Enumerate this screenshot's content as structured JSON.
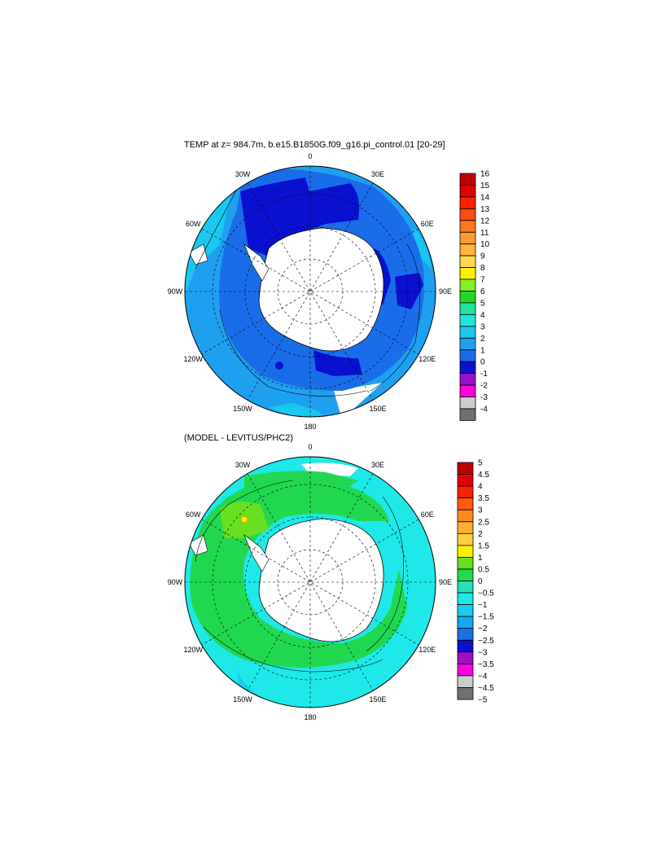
{
  "map1": {
    "title": "TEMP at z= 984.7m, b.e15.B1850G.f09_g16.pi_control.01 [20-29]",
    "longitude_labels": [
      "0",
      "30E",
      "60E",
      "90E",
      "120E",
      "150E",
      "180",
      "150W",
      "120W",
      "90W",
      "60W",
      "30W"
    ],
    "colorbar": {
      "labels": [
        "16",
        "15",
        "14",
        "13",
        "12",
        "11",
        "10",
        "9",
        "8",
        "7",
        "6",
        "5",
        "4",
        "3",
        "2",
        "1",
        "0",
        "-1",
        "-2",
        "-3",
        "-4"
      ],
      "colors": [
        "#c00000",
        "#e00000",
        "#ff2000",
        "#ff4a10",
        "#ff7820",
        "#ff9a30",
        "#ffb63c",
        "#ffd84a",
        "#fff200",
        "#88ee28",
        "#22d822",
        "#22e2a0",
        "#1ee8d8",
        "#18c8ef",
        "#1ea0f0",
        "#1a6de8",
        "#0a10d0",
        "#9a10c8",
        "#ff00dd",
        "#cccccc",
        "#707070"
      ]
    }
  },
  "map2": {
    "title": "(MODEL - LEVITUS/PHC2)",
    "longitude_labels": [
      "0",
      "30E",
      "60E",
      "90E",
      "120E",
      "150E",
      "180",
      "150W",
      "120W",
      "90W",
      "60W",
      "30W"
    ],
    "colorbar": {
      "labels": [
        "5",
        "4.5",
        "4",
        "3.5",
        "3",
        "2.5",
        "2",
        "1.5",
        "1",
        "0.5",
        "0",
        "−0.5",
        "−1",
        "−1.5",
        "−2",
        "−2.5",
        "−3",
        "−3.5",
        "−4",
        "−4.5",
        "−5"
      ],
      "colors": [
        "#c00000",
        "#e00000",
        "#ff2000",
        "#ff5a10",
        "#ff8a20",
        "#ffb030",
        "#ffd040",
        "#fff000",
        "#66e020",
        "#22d850",
        "#26e0b8",
        "#1ee8e8",
        "#18ccf0",
        "#18a8f0",
        "#1a70e8",
        "#0a10d0",
        "#9a10c8",
        "#ff00dd",
        "#cccccc",
        "#707070"
      ]
    }
  }
}
